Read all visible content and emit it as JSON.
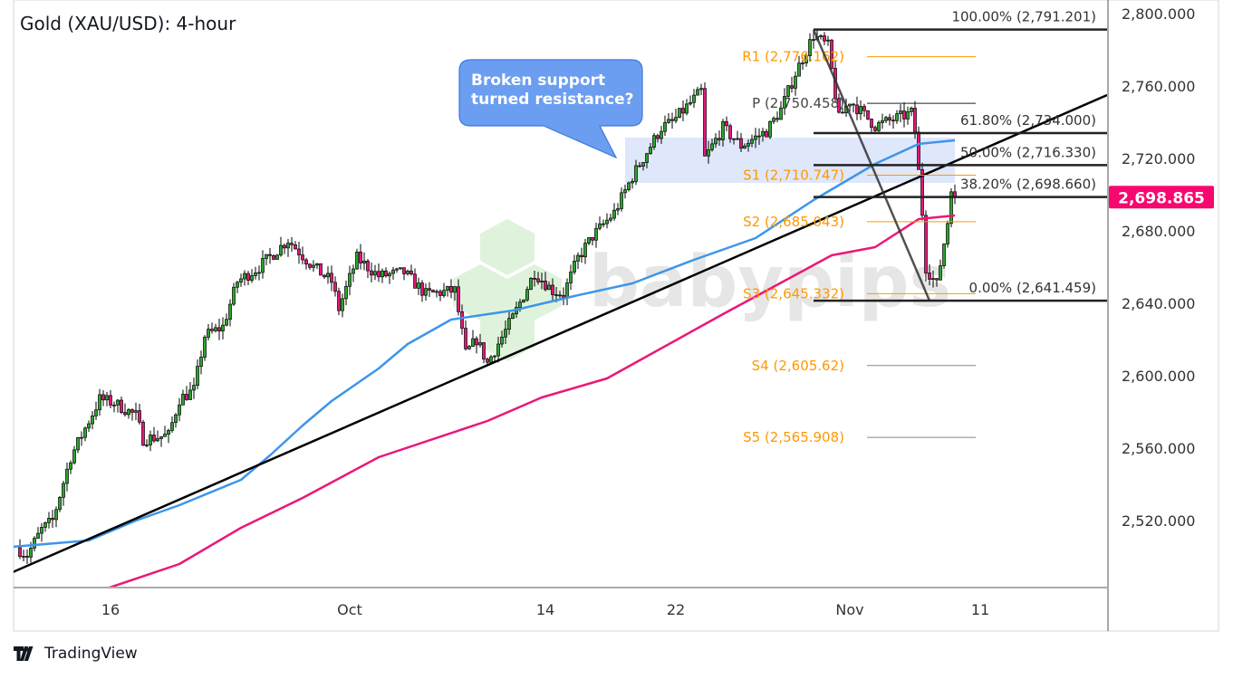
{
  "title": "Gold (XAU/USD): 4-hour",
  "branding": {
    "platform": "TradingView",
    "watermark": "babypips"
  },
  "callout": {
    "text": "Broken support turned resistance?",
    "color": "#6b9ef0"
  },
  "colors": {
    "up": "#2ba52b",
    "down": "#e8157a",
    "ma_fast": "#3d95eb",
    "ma_slow": "#eb1777",
    "trendline": "#000000",
    "pivot": "#ff9800",
    "zone": "#dde6fb",
    "price_badge": "#f7086f"
  },
  "chart_data": {
    "type": "candlestick",
    "title": "Gold (XAU/USD): 4-hour",
    "ylim": [
      2480,
      2807
    ],
    "grid": false,
    "y_ticks": [
      "2,800.000",
      "2,760.000",
      "2,720.000",
      "2,680.000",
      "2,640.000",
      "2,600.000",
      "2,560.000",
      "2,520.000"
    ],
    "y_tick_values": [
      2800,
      2760,
      2720,
      2680,
      2640,
      2600,
      2560,
      2520
    ],
    "x_ticks": [
      {
        "label": "16",
        "date": "2024-09-16"
      },
      {
        "label": "Oct",
        "date": "2024-10-01"
      },
      {
        "label": "14",
        "date": "2024-10-14"
      },
      {
        "label": "22",
        "date": "2024-10-22"
      },
      {
        "label": "Nov",
        "date": "2024-11-01"
      },
      {
        "label": "11",
        "date": "2024-11-11"
      }
    ],
    "last_price": "2,698.865",
    "last_price_value": 2698.865,
    "price_path": [
      [
        "2024-09-09T16",
        2505
      ],
      [
        "2024-09-10T04",
        2501
      ],
      [
        "2024-09-10T20",
        2515
      ],
      [
        "2024-09-11T08",
        2520
      ],
      [
        "2024-09-12T04",
        2555
      ],
      [
        "2024-09-13T12",
        2587
      ],
      [
        "2024-09-16T04",
        2585
      ],
      [
        "2024-09-17T04",
        2578
      ],
      [
        "2024-09-17T12",
        2565
      ],
      [
        "2024-09-18T16",
        2567
      ],
      [
        "2024-09-19T04",
        2587
      ],
      [
        "2024-09-19T20",
        2592
      ],
      [
        "2024-09-20T08",
        2622
      ],
      [
        "2024-09-23T04",
        2627
      ],
      [
        "2024-09-23T20",
        2652
      ],
      [
        "2024-09-24T20",
        2660
      ],
      [
        "2024-09-26T04",
        2675
      ],
      [
        "2024-09-27T08",
        2660
      ],
      [
        "2024-09-30T04",
        2652
      ],
      [
        "2024-09-30T12",
        2637
      ],
      [
        "2024-10-01T08",
        2665
      ],
      [
        "2024-10-02T08",
        2655
      ],
      [
        "2024-10-03T12",
        2657
      ],
      [
        "2024-10-04T12",
        2645
      ],
      [
        "2024-10-07T20",
        2647
      ],
      [
        "2024-10-08T08",
        2612
      ],
      [
        "2024-10-08T20",
        2620
      ],
      [
        "2024-10-09T08",
        2607
      ],
      [
        "2024-10-10T12",
        2632
      ],
      [
        "2024-10-11T12",
        2657
      ],
      [
        "2024-10-14T08",
        2647
      ],
      [
        "2024-10-14T20",
        2645
      ],
      [
        "2024-10-15T12",
        2665
      ],
      [
        "2024-10-16T04",
        2677
      ],
      [
        "2024-10-17T04",
        2690
      ],
      [
        "2024-10-18T00",
        2710
      ],
      [
        "2024-10-21T08",
        2737
      ],
      [
        "2024-10-21T20",
        2740
      ],
      [
        "2024-10-23T04",
        2757
      ],
      [
        "2024-10-23T08",
        2720
      ],
      [
        "2024-10-24T04",
        2737
      ],
      [
        "2024-10-25T00",
        2727
      ],
      [
        "2024-10-28T04",
        2735
      ],
      [
        "2024-10-28T20",
        2747
      ],
      [
        "2024-10-29T12",
        2767
      ],
      [
        "2024-10-30T08",
        2788
      ],
      [
        "2024-10-31T00",
        2782
      ],
      [
        "2024-10-31T12",
        2742
      ],
      [
        "2024-11-01T00",
        2752
      ],
      [
        "2024-11-04T04",
        2738
      ],
      [
        "2024-11-05T20",
        2745
      ],
      [
        "2024-11-06T00",
        2735
      ],
      [
        "2024-11-06T08",
        2690
      ],
      [
        "2024-11-06T12",
        2660
      ],
      [
        "2024-11-07T00",
        2650
      ],
      [
        "2024-11-07T12",
        2685
      ],
      [
        "2024-11-07T16",
        2705
      ],
      [
        "2024-11-07T20",
        2698.865
      ]
    ],
    "series": [
      {
        "type": "line",
        "color": "#3d95eb",
        "points": [
          [
            "2024-09-09T12",
            2505.5
          ],
          [
            "2024-09-13T00",
            2509
          ],
          [
            "2024-09-17T04",
            2520
          ],
          [
            "2024-09-19T04",
            2528.5
          ],
          [
            "2024-09-24T00",
            2542.5
          ],
          [
            "2024-09-25T08",
            2556
          ],
          [
            "2024-09-26T20",
            2572.5
          ],
          [
            "2024-09-30T04",
            2586
          ],
          [
            "2024-10-02T08",
            2604
          ],
          [
            "2024-10-03T16",
            2617.5
          ],
          [
            "2024-10-07T16",
            2631
          ],
          [
            "2024-10-10T12",
            2636
          ],
          [
            "2024-10-15T08",
            2644
          ],
          [
            "2024-10-18T00",
            2651
          ],
          [
            "2024-10-22T20",
            2664
          ],
          [
            "2024-10-25T16",
            2676
          ],
          [
            "2024-10-30T08",
            2697
          ],
          [
            "2024-11-04T04",
            2717
          ],
          [
            "2024-11-06T04",
            2728
          ],
          [
            "2024-11-07T20",
            2730
          ]
        ]
      },
      {
        "type": "line",
        "color": "#eb1777",
        "points": [
          [
            "2024-09-13T20",
            2482.5
          ],
          [
            "2024-09-19T04",
            2496
          ],
          [
            "2024-09-24T00",
            2516
          ],
          [
            "2024-09-26T20",
            2532.5
          ],
          [
            "2024-10-02T08",
            2555
          ],
          [
            "2024-10-09T08",
            2575
          ],
          [
            "2024-10-11T20",
            2588
          ],
          [
            "2024-10-16T20",
            2598.5
          ],
          [
            "2024-10-24T04",
            2634
          ],
          [
            "2024-10-31T04",
            2666.5
          ],
          [
            "2024-11-04T04",
            2671
          ],
          [
            "2024-11-06T04",
            2686.5
          ],
          [
            "2024-11-07T20",
            2688.5
          ]
        ]
      }
    ],
    "trendline": [
      [
        "2024-09-09T12",
        2491.5
      ],
      [
        "2024-11-18T20",
        2755
      ]
    ],
    "zone": {
      "from": "2024-10-17T16",
      "to": "2024-11-07T20",
      "low": 2706.5,
      "high": 2731.5
    },
    "fibonacci": {
      "swing": [
        [
          "2024-10-30T08",
          2791.201
        ],
        [
          "2024-11-06T16",
          2641.459
        ]
      ],
      "levels": [
        {
          "label": "100.00% (2,791.201)",
          "value": 2791.201
        },
        {
          "label": "61.80% (2,734.000)",
          "value": 2734.0
        },
        {
          "label": "50.00% (2,716.330)",
          "value": 2716.33
        },
        {
          "label": "38.20% (2,698.660)",
          "value": 2698.66
        },
        {
          "label": "0.00% (2,641.459)",
          "value": 2641.459
        }
      ]
    },
    "pivots": [
      {
        "label": "R1 (2,776.162)",
        "value": 2776.162,
        "kind": "orange"
      },
      {
        "label": "P (2,750.458)",
        "value": 2750.458,
        "kind": "pivot"
      },
      {
        "label": "S1 (2,710.747)",
        "value": 2710.747,
        "kind": "orange"
      },
      {
        "label": "S2 (2,685.043)",
        "value": 2685.043,
        "kind": "orange"
      },
      {
        "label": "S3 (2,645.332)",
        "value": 2645.332,
        "kind": "orange"
      },
      {
        "label": "S4 (2,605.62)",
        "value": 2605.62,
        "kind": "gray"
      },
      {
        "label": "S5 (2,565.908)",
        "value": 2565.908,
        "kind": "gray"
      }
    ]
  }
}
